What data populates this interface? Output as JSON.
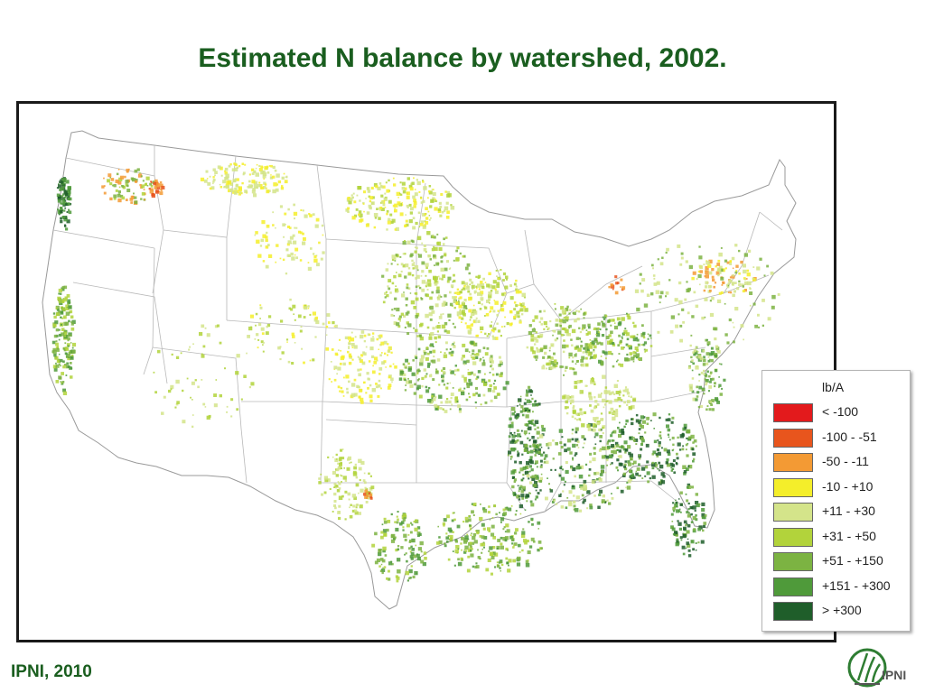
{
  "title": "Estimated N balance by watershed, 2002.",
  "footer": {
    "source": "IPNI, 2010",
    "logo_text": "IPNI"
  },
  "legend": {
    "title": "lb/A",
    "items": [
      {
        "label": "< -100",
        "color": "#e31a1c"
      },
      {
        "label": "-100 - -51",
        "color": "#e8551d"
      },
      {
        "label": "-50 - -11",
        "color": "#f39a34"
      },
      {
        "label": "-10 - +10",
        "color": "#f4ee2a"
      },
      {
        "label": "+11 - +30",
        "color": "#d4e48a"
      },
      {
        "label": "+31 - +50",
        "color": "#b2d33b"
      },
      {
        "label": "+51 - +150",
        "color": "#7cb342"
      },
      {
        "label": "+151 - +300",
        "color": "#4f9a3a"
      },
      {
        "label": "> +300",
        "color": "#1f5e2a"
      }
    ]
  },
  "colors": {
    "title": "#1a5e1f",
    "state_border": "#b0b0b0",
    "frame": "#1a1a1a"
  }
}
